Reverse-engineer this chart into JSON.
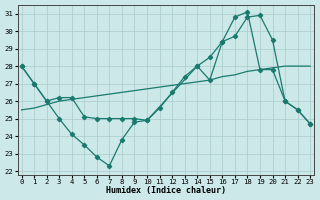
{
  "xlabel": "Humidex (Indice chaleur)",
  "bg_color": "#cce8e8",
  "grid_color": "#aacccc",
  "line_color": "#1a7a6e",
  "xlim": [
    -0.3,
    23.3
  ],
  "ylim": [
    21.8,
    31.5
  ],
  "xticks": [
    0,
    1,
    2,
    3,
    4,
    5,
    6,
    7,
    8,
    9,
    10,
    11,
    12,
    13,
    14,
    15,
    16,
    17,
    18,
    19,
    20,
    21,
    22,
    23
  ],
  "yticks": [
    22,
    23,
    24,
    25,
    26,
    27,
    28,
    29,
    30,
    31
  ],
  "line1_x": [
    0,
    1,
    2,
    3,
    4,
    5,
    6,
    7,
    8,
    9,
    10,
    11,
    12,
    13,
    14,
    15,
    16,
    17,
    18,
    19,
    20,
    21,
    22,
    23
  ],
  "line1_y": [
    28.0,
    27.0,
    26.0,
    25.0,
    24.1,
    23.5,
    22.8,
    22.3,
    23.8,
    24.8,
    24.9,
    25.6,
    26.5,
    27.4,
    28.0,
    28.5,
    29.4,
    29.7,
    30.8,
    30.9,
    29.5,
    26.0,
    25.5,
    24.7
  ],
  "line2_x": [
    0,
    1,
    2,
    3,
    4,
    5,
    6,
    7,
    8,
    9,
    10,
    11,
    12,
    13,
    14,
    15,
    16,
    17,
    18,
    19,
    20,
    21,
    22,
    23
  ],
  "line2_y": [
    25.5,
    25.6,
    25.8,
    26.0,
    26.1,
    26.2,
    26.3,
    26.4,
    26.5,
    26.6,
    26.7,
    26.8,
    26.9,
    27.0,
    27.1,
    27.2,
    27.4,
    27.5,
    27.7,
    27.8,
    27.9,
    28.0,
    28.0,
    28.0
  ],
  "line3_x": [
    0,
    1,
    2,
    3,
    4,
    5,
    6,
    7,
    8,
    9,
    10,
    14,
    15,
    16,
    17,
    18,
    19,
    20,
    21,
    22,
    23
  ],
  "line3_y": [
    28.0,
    27.0,
    26.0,
    26.2,
    26.2,
    25.1,
    25.0,
    25.0,
    25.0,
    25.0,
    24.9,
    28.0,
    27.2,
    29.4,
    30.8,
    31.1,
    27.8,
    27.8,
    26.0,
    25.5,
    24.7
  ]
}
